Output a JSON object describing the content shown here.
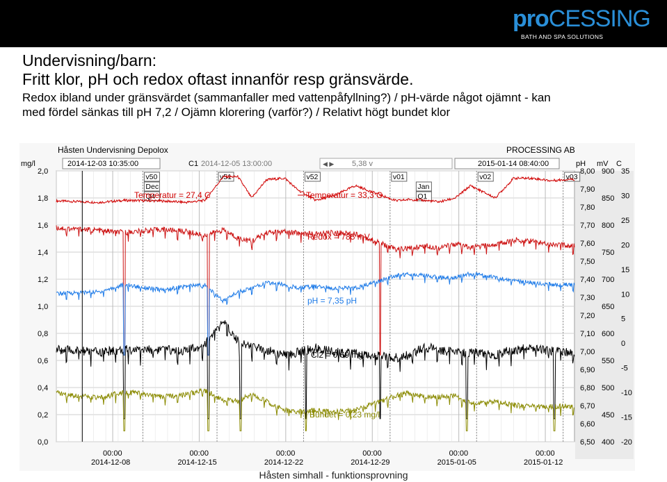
{
  "header": {
    "logo_text_bold": "pro",
    "logo_text_rest": "CESSING",
    "logo_tagline": "BATH AND SPA SOLUTIONS"
  },
  "slide": {
    "title_line1": "Undervisning/barn:",
    "title_line2": "Fritt klor, pH och redox oftast innanför resp gränsvärde.",
    "body_line1": "Redox ibland under gränsvärdet (sammanfaller med vattenpåfyllning?) / pH-värde något ojämnt - kan",
    "body_line2": "med fördel sänkas till pH 7,2 / Ojämn klorering (varför?) / Relativt högt bundet klor"
  },
  "footer": {
    "text": "Håsten simhall - funktionsprovning"
  },
  "colors": {
    "redox": "#cc1111",
    "ph": "#1e7be8",
    "cl2": "#000000",
    "bundet": "#8a8a00",
    "temp": "#d00000",
    "cursor": "#00aaaa"
  },
  "chart_data": {
    "type": "line",
    "title": "Håsten Undervisning Depolox",
    "brand": "PROCESSING AB",
    "cursor_box": {
      "left_time": "2014-12-03 10:35:00",
      "c1_label": "C1",
      "c1_time": "2014-12-05 13:00:00",
      "value": "5,38 v",
      "right_time": "2015-01-14 08:40:00"
    },
    "xlabel": "",
    "x_ticks": [
      {
        "time": "00:00",
        "date": "2014-12-08"
      },
      {
        "time": "00:00",
        "date": "2014-12-15"
      },
      {
        "time": "00:00",
        "date": "2014-12-22"
      },
      {
        "time": "00:00",
        "date": "2014-12-29"
      },
      {
        "time": "00:00",
        "date": "2015-01-05"
      },
      {
        "time": "00:00",
        "date": "2015-01-12"
      }
    ],
    "x_range": [
      "2014-12-03 10:35",
      "2015-01-14 08:40"
    ],
    "axes": {
      "mgl": {
        "label": "mg/l",
        "min": 0.0,
        "max": 2.0,
        "ticks": [
          "2,0",
          "1,8",
          "1,6",
          "1,4",
          "1,2",
          "1,0",
          "0,8",
          "0,6",
          "0,4",
          "0,2",
          "0,0"
        ]
      },
      "ph": {
        "label": "pH",
        "min": 6.5,
        "max": 8.0,
        "ticks": [
          "8,00",
          "7,90",
          "7,80",
          "7,70",
          "7,60",
          "7,50",
          "7,40",
          "7,30",
          "7,20",
          "7,10",
          "7,00",
          "6,90",
          "6,80",
          "6,70",
          "6,60",
          "6,50"
        ]
      },
      "mv": {
        "label": "mV",
        "min": 400,
        "max": 900,
        "ticks": [
          "900",
          "850",
          "800",
          "750",
          "700",
          "650",
          "600",
          "550",
          "500",
          "450",
          "400"
        ]
      },
      "c": {
        "label": "C",
        "min": -20,
        "max": 35,
        "ticks": [
          "35",
          "30",
          "25",
          "20",
          "15",
          "10",
          "5",
          "0",
          "-5",
          "-10",
          "-15",
          "-20"
        ]
      }
    },
    "markers": [
      {
        "label": "v50",
        "day": 7.0
      },
      {
        "label": "Dec",
        "day": 7.0
      },
      {
        "label": "Q4",
        "day": 7.0
      },
      {
        "label": "v51",
        "day": 13.0
      },
      {
        "label": "v52",
        "day": 20.0
      },
      {
        "label": "v01",
        "day": 27.0
      },
      {
        "label": "Jan",
        "day": 29.0
      },
      {
        "label": "Q1",
        "day": 29.0
      },
      {
        "label": "v02",
        "day": 34.0
      },
      {
        "label": "v03",
        "day": 41.0
      }
    ],
    "annotations": {
      "temp_left": "Temperatur = 27,4 C",
      "temp_right": "Temperatur = 33,3 C",
      "redox": "Redox = 785 mV",
      "ph": "pH = 7,35 pH",
      "cl2": "Cl2 = 0,69 mg/l",
      "bundet": "Bundet = 0,23 mg/l"
    },
    "grid": true,
    "series": [
      {
        "name": "Temperatur",
        "axis": "c",
        "days": [
          0,
          3.5,
          5.5,
          8.5,
          10.5,
          12,
          13.5,
          14.7,
          15.8,
          17,
          18.5,
          19.5,
          21,
          22.5,
          24.2,
          27.5,
          28.6,
          29.8,
          31,
          32.3,
          33.5,
          35.5,
          37,
          38.5,
          40,
          41.5
        ],
        "values": [
          28.9,
          28.6,
          29.0,
          28.9,
          28.6,
          29.0,
          33.8,
          33.8,
          29.5,
          33.2,
          33.5,
          31.2,
          29.0,
          30.0,
          32.0,
          28.9,
          29.2,
          29.0,
          28.7,
          29.5,
          32.0,
          29.5,
          33.5,
          33.5,
          33.0,
          33.3
        ]
      },
      {
        "name": "Redox",
        "axis": "mv",
        "days": [
          0,
          3.5,
          5.5,
          8.5,
          10.5,
          12,
          13.5,
          14.7,
          15.8,
          17,
          18.5,
          19.5,
          21,
          22.5,
          24.2,
          27.5,
          28.6,
          29.8,
          31,
          32.3,
          33.5,
          35.5,
          37,
          38.5,
          40,
          41.5
        ],
        "values": [
          795,
          790,
          786,
          792,
          788,
          781,
          791,
          776,
          770,
          786,
          787,
          785,
          783,
          786,
          784,
          755,
          757,
          762,
          758,
          765,
          758,
          764,
          772,
          770,
          765,
          762
        ]
      },
      {
        "name": "pH",
        "axis": "ph",
        "days": [
          0,
          3.5,
          5.5,
          8.5,
          10.5,
          12,
          13.5,
          14.7,
          15.8,
          17,
          18.5,
          19.5,
          21,
          22.5,
          24.2,
          27.5,
          28.6,
          29.8,
          31,
          32.3,
          33.5,
          35.5,
          37,
          38.5,
          40,
          41.5
        ],
        "values": [
          7.32,
          7.33,
          7.37,
          7.34,
          7.36,
          7.37,
          7.28,
          7.33,
          7.35,
          7.38,
          7.37,
          7.35,
          7.36,
          7.35,
          7.35,
          7.42,
          7.43,
          7.42,
          7.41,
          7.41,
          7.43,
          7.41,
          7.39,
          7.38,
          7.37,
          7.37
        ]
      },
      {
        "name": "Cl2",
        "axis": "mgl",
        "days": [
          0,
          3.5,
          5.5,
          8.5,
          10.5,
          12,
          13.5,
          14.7,
          15.8,
          17,
          18.5,
          19.5,
          21,
          22.5,
          24.2,
          27.5,
          28.6,
          29.8,
          31,
          32.3,
          33.5,
          35.5,
          37,
          38.5,
          40,
          41.5
        ],
        "values": [
          0.68,
          0.66,
          0.68,
          0.68,
          0.67,
          0.72,
          0.88,
          0.75,
          0.7,
          0.68,
          0.64,
          0.66,
          0.69,
          0.66,
          0.65,
          0.62,
          0.64,
          0.7,
          0.68,
          0.66,
          0.66,
          0.64,
          0.68,
          0.69,
          0.67,
          0.66
        ]
      },
      {
        "name": "Bundet",
        "axis": "mgl",
        "days": [
          0,
          3.5,
          5.5,
          8.5,
          10.5,
          12,
          13.5,
          14.7,
          15.8,
          17,
          18.5,
          19.5,
          21,
          22.5,
          24.2,
          27.5,
          28.6,
          29.8,
          31,
          32.3,
          33.5,
          35.5,
          37,
          38.5,
          40,
          41.5
        ],
        "values": [
          0.36,
          0.32,
          0.37,
          0.33,
          0.35,
          0.38,
          0.31,
          0.3,
          0.35,
          0.3,
          0.23,
          0.22,
          0.23,
          0.22,
          0.23,
          0.34,
          0.36,
          0.33,
          0.33,
          0.34,
          0.28,
          0.3,
          0.27,
          0.26,
          0.26,
          0.26
        ]
      }
    ],
    "drops": [
      {
        "day": 5.5,
        "series": [
          "Redox",
          "pH",
          "Cl2",
          "Bundet"
        ]
      },
      {
        "day": 12.3,
        "series": [
          "Redox",
          "pH",
          "Cl2",
          "Bundet"
        ]
      },
      {
        "day": 14.9,
        "series": [
          "Cl2",
          "Bundet"
        ]
      },
      {
        "day": 20.2,
        "series": [
          "Cl2",
          "Bundet"
        ]
      },
      {
        "day": 26.2,
        "series": [
          "Redox",
          "Cl2"
        ]
      },
      {
        "day": 33.2,
        "series": [
          "Cl2",
          "Bundet"
        ]
      },
      {
        "day": 40.3,
        "series": [
          "Cl2",
          "Bundet"
        ]
      }
    ]
  }
}
